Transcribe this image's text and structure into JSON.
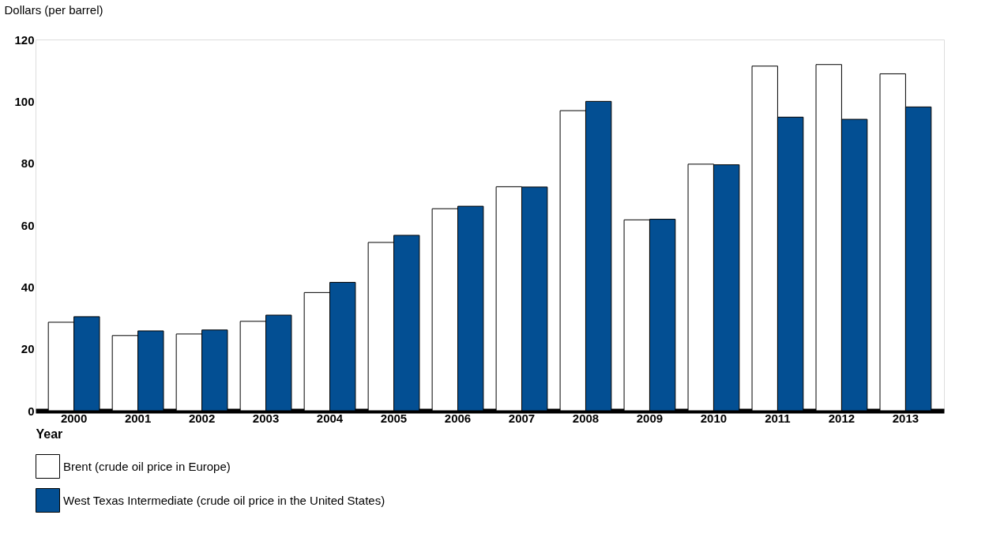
{
  "chart_data": {
    "type": "bar",
    "ylabel": "Dollars (per barrel)",
    "xlabel": "Year",
    "categories": [
      "2000",
      "2001",
      "2002",
      "2003",
      "2004",
      "2005",
      "2006",
      "2007",
      "2008",
      "2009",
      "2010",
      "2011",
      "2012",
      "2013"
    ],
    "series": [
      {
        "name": "Brent (crude oil price in Europe)",
        "color": "#ffffff",
        "values": [
          28.6,
          24.3,
          24.8,
          28.9,
          38.2,
          54.4,
          65.3,
          72.4,
          97.0,
          61.7,
          79.7,
          111.4,
          111.9,
          108.9
        ]
      },
      {
        "name": "West Texas Intermediate (crude oil price in the United States)",
        "color": "#034f93",
        "values": [
          30.4,
          25.8,
          26.1,
          30.9,
          41.5,
          56.7,
          66.1,
          72.3,
          100.0,
          61.9,
          79.5,
          94.9,
          94.2,
          98.2
        ]
      }
    ],
    "ylim": [
      0,
      120
    ],
    "yticks": [
      0,
      20,
      40,
      60,
      80,
      100,
      120
    ],
    "grid": false,
    "legend": "bottom left"
  }
}
